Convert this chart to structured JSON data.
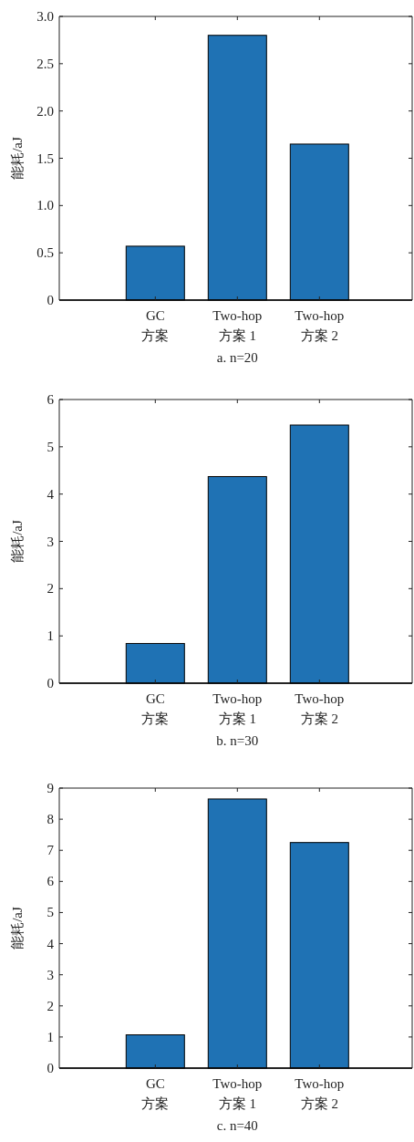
{
  "chart_data": [
    {
      "type": "bar",
      "title": "a. n=20",
      "ylabel": "能耗/aJ",
      "categories": [
        "GC\n方案",
        "Two-hop\n方案 1",
        "Two-hop\n方案 2"
      ],
      "series": [
        {
          "color": "#1f72b4",
          "values": [
            0.57,
            2.8,
            1.65
          ]
        }
      ],
      "ylim": [
        0,
        3
      ],
      "yticks": [
        0,
        0.5,
        {
          "value": 1,
          "label": "1.0"
        },
        1.5,
        {
          "value": 2,
          "label": "2.0"
        },
        2.5,
        {
          "value": 3,
          "label": "3.0"
        }
      ]
    },
    {
      "type": "bar",
      "title": "b. n=30",
      "ylabel": "能耗/aJ",
      "categories": [
        "GC\n方案",
        "Two-hop\n方案 1",
        "Two-hop\n方案 2"
      ],
      "series": [
        {
          "color": "#1f72b4",
          "values": [
            0.84,
            4.37,
            5.46
          ]
        }
      ],
      "ylim": [
        0,
        6
      ],
      "yticks": [
        0,
        1,
        2,
        3,
        4,
        5,
        6
      ]
    },
    {
      "type": "bar",
      "title": "c. n=40",
      "ylabel": "能耗/aJ",
      "categories": [
        "GC\n方案",
        "Two-hop\n方案 1",
        "Two-hop\n方案 2"
      ],
      "series": [
        {
          "color": "#1f72b4",
          "values": [
            1.07,
            8.65,
            7.25
          ]
        }
      ],
      "ylim": [
        0,
        9
      ],
      "yticks": [
        0,
        1,
        2,
        3,
        4,
        5,
        6,
        7,
        8,
        9
      ]
    }
  ]
}
